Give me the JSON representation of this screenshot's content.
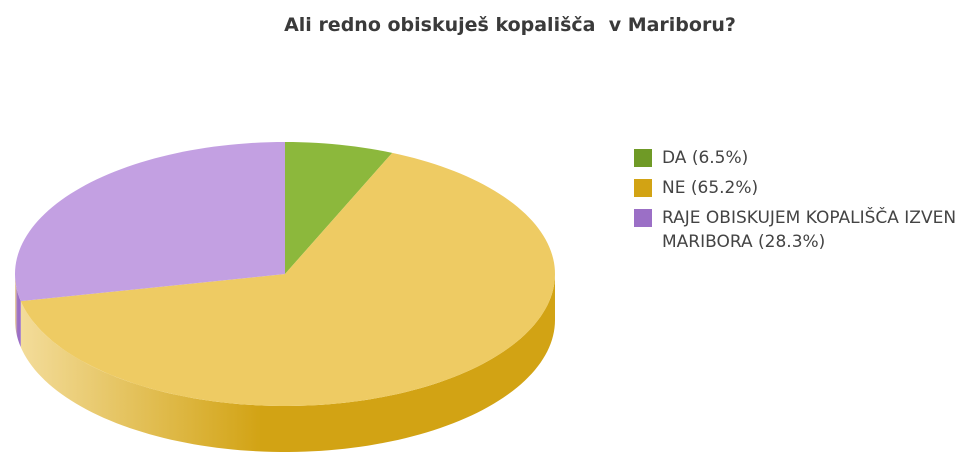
{
  "chart_data": {
    "type": "pie",
    "title": "Ali redno obiskuješ kopališča  v Mariboru?",
    "categories": [
      "DA",
      "NE",
      "RAJE OBISKUJEM KOPALIŠČA IZVEN MARIBORA"
    ],
    "values": [
      6.5,
      65.2,
      28.3
    ],
    "value_labels": [
      "(6.5%)",
      "(65.2%)",
      "(28.3%)"
    ],
    "colors": [
      "#8cb83c",
      "#eecb63",
      "#c3a0e2"
    ],
    "side_colors": [
      "#6f9a26",
      "#d2a314",
      "#9b6fc6"
    ],
    "legend": "right"
  }
}
